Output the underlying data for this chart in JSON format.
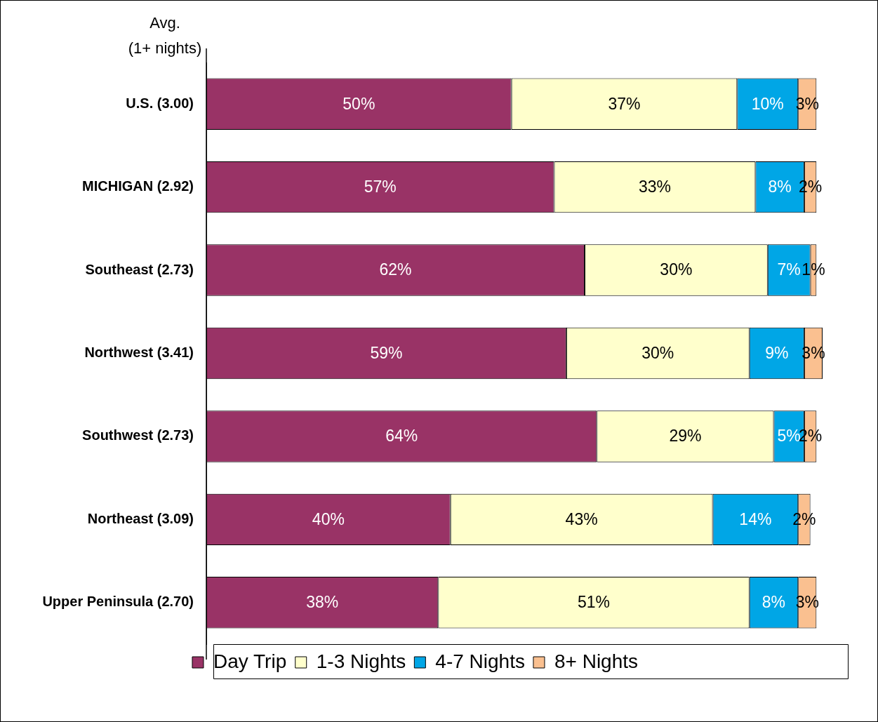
{
  "chart_data": {
    "type": "bar",
    "orientation": "horizontal",
    "stacked": true,
    "ylabel": "Avg.\n(1+ nights)",
    "categories": [
      "U.S. (3.00)",
      "MICHIGAN (2.92)",
      "Southeast (2.73)",
      "Northwest (3.41)",
      "Southwest (2.73)",
      "Northeast (3.09)",
      "Upper Peninsula (2.70)"
    ],
    "series": [
      {
        "name": "Day Trip",
        "color": "#993366",
        "values": [
          50,
          57,
          62,
          59,
          64,
          40,
          38
        ],
        "value_labels": [
          "50%",
          "57%",
          "62%",
          "59%",
          "64%",
          "40%",
          "38%"
        ]
      },
      {
        "name": "1-3 Nights",
        "color": "#ffffcc",
        "values": [
          37,
          33,
          30,
          30,
          29,
          43,
          51
        ],
        "value_labels": [
          "37%",
          "33%",
          "30%",
          "30%",
          "29%",
          "43%",
          "51%"
        ]
      },
      {
        "name": "4-7 Nights",
        "color": "#00a6e6",
        "values": [
          10,
          8,
          7,
          9,
          5,
          14,
          8
        ],
        "value_labels": [
          "10%",
          "8%",
          "7%",
          "9%",
          "5%",
          "14%",
          "8%"
        ]
      },
      {
        "name": "8+ Nights",
        "color": "#fac090",
        "values": [
          3,
          2,
          1,
          3,
          2,
          2,
          3
        ],
        "value_labels": [
          "3%",
          "2%",
          "1%",
          "3%",
          "2%",
          "2%",
          "3%"
        ]
      }
    ],
    "tick_labels": false,
    "legend": "bottom"
  }
}
